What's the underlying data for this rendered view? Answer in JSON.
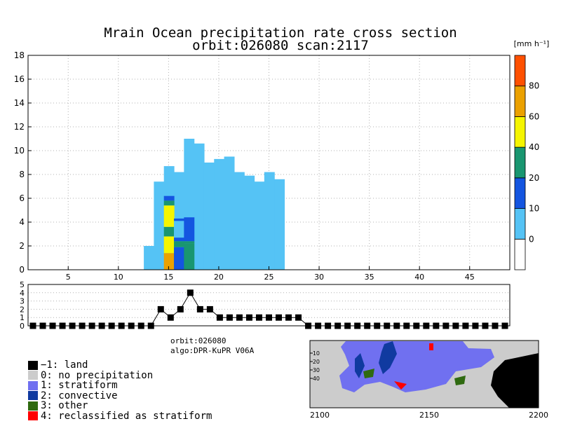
{
  "chart_data": [
    {
      "type": "heatmap",
      "title": "Mrain Ocean precipitation rate cross section",
      "subtitle": "orbit:026080    scan:2117",
      "colorbar_unit": "[mm h⁻¹]",
      "colorbar_ticks": [
        "0",
        "10",
        "20",
        "40",
        "60",
        "80"
      ],
      "colorbar_bins": [
        {
          "color": "#ffffff"
        },
        {
          "color": "#55c3f5"
        },
        {
          "color": "#1455e0"
        },
        {
          "color": "#199670"
        },
        {
          "color": "#f5f500"
        },
        {
          "color": "#eba100"
        },
        {
          "color": "#ff5000"
        }
      ],
      "xlim": [
        1,
        49
      ],
      "ylim": [
        0,
        18
      ],
      "xticks": [
        "5",
        "10",
        "15",
        "20",
        "25",
        "30",
        "35",
        "40",
        "45"
      ],
      "yticks": [
        "0",
        "2",
        "4",
        "6",
        "8",
        "10",
        "12",
        "14",
        "16",
        "18"
      ],
      "grid": true,
      "columns": [
        {
          "x": 13,
          "top": 2.0
        },
        {
          "x": 14,
          "top": 7.4
        },
        {
          "x": 15,
          "top": 8.7
        },
        {
          "x": 16,
          "top": 8.2
        },
        {
          "x": 17,
          "top": 11.0
        },
        {
          "x": 18,
          "top": 10.6
        },
        {
          "x": 19,
          "top": 9.0
        },
        {
          "x": 20,
          "top": 9.3
        },
        {
          "x": 21,
          "top": 9.5
        },
        {
          "x": 22,
          "top": 8.2
        },
        {
          "x": 23,
          "top": 7.9
        },
        {
          "x": 24,
          "top": 7.4
        },
        {
          "x": 25,
          "top": 8.2
        },
        {
          "x": 26,
          "top": 7.6
        }
      ],
      "cells": [
        {
          "x": 15,
          "y0": 0.0,
          "y1": 1.4,
          "color": "#eba100"
        },
        {
          "x": 15,
          "y0": 1.4,
          "y1": 2.8,
          "color": "#f5f500"
        },
        {
          "x": 15,
          "y0": 2.8,
          "y1": 3.6,
          "color": "#199670"
        },
        {
          "x": 15,
          "y0": 3.6,
          "y1": 5.4,
          "color": "#f5f500"
        },
        {
          "x": 15,
          "y0": 5.4,
          "y1": 5.8,
          "color": "#199670"
        },
        {
          "x": 15,
          "y0": 5.8,
          "y1": 6.2,
          "color": "#1455e0"
        },
        {
          "x": 15,
          "y0": 6.2,
          "y1": 6.4,
          "color": "#55c3f5"
        },
        {
          "x": 16,
          "y0": 0.0,
          "y1": 1.9,
          "color": "#1455e0"
        },
        {
          "x": 16,
          "y0": 1.9,
          "y1": 2.4,
          "color": "#199670"
        },
        {
          "x": 16,
          "y0": 2.4,
          "y1": 2.7,
          "color": "#1455e0"
        },
        {
          "x": 16,
          "y0": 2.7,
          "y1": 4.1,
          "color": "#55c3f5"
        },
        {
          "x": 16,
          "y0": 4.1,
          "y1": 4.3,
          "color": "#1455e0"
        },
        {
          "x": 17,
          "y0": 0.0,
          "y1": 2.2,
          "color": "#199670"
        },
        {
          "x": 17,
          "y0": 2.2,
          "y1": 2.4,
          "color": "#199670"
        },
        {
          "x": 17,
          "y0": 2.4,
          "y1": 4.4,
          "color": "#1455e0"
        }
      ]
    },
    {
      "type": "line",
      "ylim": [
        0,
        5
      ],
      "yticks": [
        "0",
        "1",
        "2",
        "3",
        "4",
        "5"
      ],
      "x": [
        1,
        2,
        3,
        4,
        5,
        6,
        7,
        8,
        9,
        10,
        11,
        12,
        13,
        14,
        15,
        16,
        17,
        18,
        19,
        20,
        21,
        22,
        23,
        24,
        25,
        26,
        27,
        28,
        29,
        30,
        31,
        32,
        33,
        34,
        35,
        36,
        37,
        38,
        39,
        40,
        41,
        42,
        43,
        44,
        45,
        46,
        47,
        48,
        49
      ],
      "values": [
        0,
        0,
        0,
        0,
        0,
        0,
        0,
        0,
        0,
        0,
        0,
        0,
        0,
        2,
        1,
        2,
        4,
        2,
        2,
        1,
        1,
        1,
        1,
        1,
        1,
        1,
        1,
        1,
        0,
        0,
        0,
        0,
        0,
        0,
        0,
        0,
        0,
        0,
        0,
        0,
        0,
        0,
        0,
        0,
        0,
        0,
        0,
        0,
        0
      ]
    }
  ],
  "info": {
    "orbit": "orbit:026080",
    "algo": "algo:DPR-KuPR V06A"
  },
  "legend": [
    {
      "label": "−1: land",
      "color": "#000000"
    },
    {
      "label": "0: no precipitation",
      "color": "#cccccc"
    },
    {
      "label": "1: stratiform",
      "color": "#7070f0"
    },
    {
      "label": "2: convective",
      "color": "#103aa0"
    },
    {
      "label": "3: other",
      "color": "#2f6a10"
    },
    {
      "label": "4: reclassified as stratiform",
      "color": "#ff0000"
    }
  ],
  "map": {
    "xticks": [
      "2100",
      "2150",
      "2200"
    ],
    "yticks": [
      "10",
      "20",
      "30",
      "40"
    ]
  }
}
